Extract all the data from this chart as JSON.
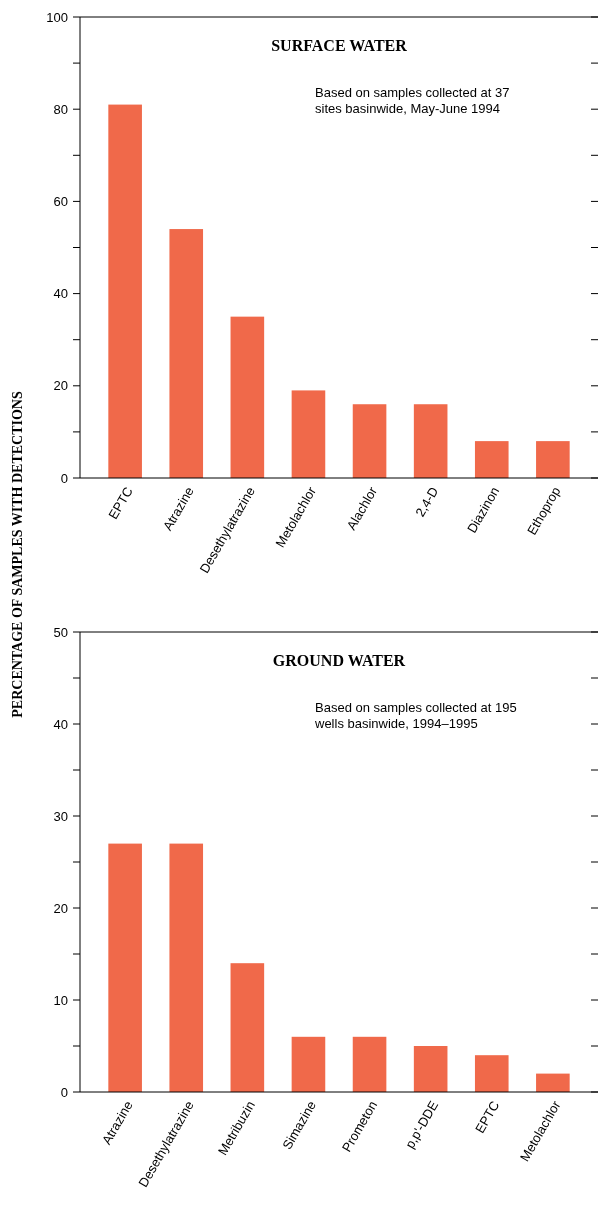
{
  "chart_data": [
    {
      "type": "bar",
      "title": "SURFACE WATER",
      "ylabel": "PERCENTAGE OF SAMPLES WITH DETECTIONS",
      "annotations": [
        "Based on samples collected at 37 sites basinwide, May-June 1994"
      ],
      "categories": [
        "EPTC",
        "Atrazine",
        "Desethylatrazine",
        "Metolachlor",
        "Alachlor",
        "2,4-D",
        "Diazinon",
        "Ethoprop"
      ],
      "values": [
        81,
        54,
        35,
        19,
        16,
        16,
        8,
        8
      ],
      "color": "#f0694a",
      "ylim": [
        0,
        100
      ],
      "yticks": [
        0,
        {
          "value": 10,
          "label": null
        },
        20,
        {
          "value": 30,
          "label": null
        },
        40,
        {
          "value": 50,
          "label": null
        },
        60,
        {
          "value": 70,
          "label": null
        },
        80,
        {
          "value": 90,
          "label": null
        },
        100
      ]
    },
    {
      "type": "bar",
      "title": "GROUND WATER",
      "annotations": [
        "Based on samples collected at 195 wells basinwide, 1994–1995"
      ],
      "categories": [
        "Atrazine",
        "Desethylatrazine",
        "Metribuzin",
        "Simazine",
        "Prometon",
        "p,p'-DDE",
        "EPTC",
        "Metolachlor"
      ],
      "values": [
        27,
        27,
        14,
        6,
        6,
        5,
        4,
        2
      ],
      "color": "#f0694a",
      "ylim": [
        0,
        50
      ],
      "yticks": [
        0,
        {
          "value": 5,
          "label": null
        },
        10,
        {
          "value": 15,
          "label": null
        },
        20,
        {
          "value": 25,
          "label": null
        },
        30,
        {
          "value": 35,
          "label": null
        },
        40,
        {
          "value": 45,
          "label": null
        },
        50
      ]
    }
  ]
}
